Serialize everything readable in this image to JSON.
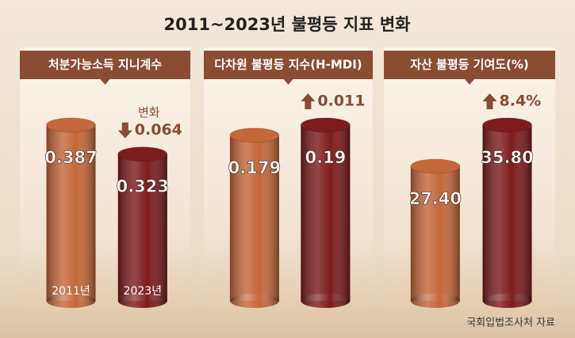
{
  "title": "2011~2023년 불평등 지표 변화",
  "source": "국회입법조사처 자료",
  "chart_data": [
    {
      "type": "bar",
      "title": "처분가능소득 지니계수",
      "categories": [
        "2011년",
        "2023년"
      ],
      "values": [
        0.387,
        0.323
      ],
      "colors": [
        "#c4673a",
        "#7d1c1c"
      ],
      "change_caption": "변화",
      "change": "0.064",
      "change_direction": "down"
    },
    {
      "type": "bar",
      "title": "다차원 불평등 지수(H-MDI)",
      "categories": [
        null,
        null
      ],
      "values": [
        0.179,
        0.19
      ],
      "colors": [
        "#c4673a",
        "#7d1c1c"
      ],
      "change": "0.011",
      "change_direction": "up"
    },
    {
      "type": "bar",
      "title": "자산 불평등 기여도(%)",
      "categories": [
        null,
        null
      ],
      "values": [
        27.4,
        35.8
      ],
      "value_labels": [
        "27.40",
        "35.80"
      ],
      "colors": [
        "#c4673a",
        "#7d1c1c"
      ],
      "change": "8.4%",
      "change_direction": "up"
    }
  ]
}
